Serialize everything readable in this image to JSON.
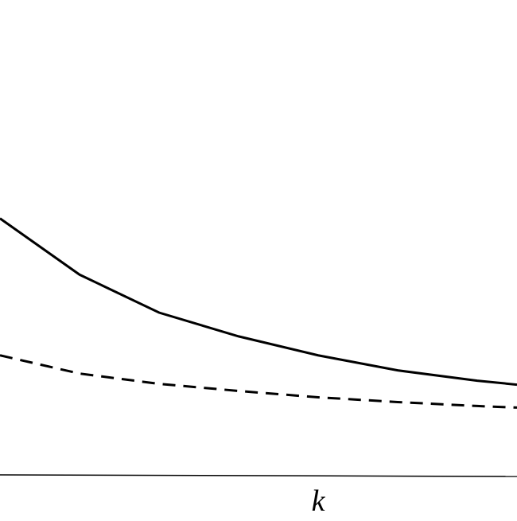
{
  "chart_data": {
    "type": "line",
    "x_label": "k",
    "x": [
      0,
      1,
      2,
      3,
      4,
      5,
      6,
      6.5
    ],
    "series": [
      {
        "color": "#000000",
        "linestyle": "solid",
        "values": [
          3.24,
          2.53,
          2.05,
          1.75,
          1.51,
          1.32,
          1.19,
          1.14
        ]
      },
      {
        "color": "#000000",
        "linestyle": "dashed",
        "values": [
          1.51,
          1.28,
          1.15,
          1.06,
          0.98,
          0.92,
          0.87,
          0.85
        ]
      }
    ],
    "xlim": [
      0,
      6.5
    ],
    "ylim": [
      0,
      6
    ]
  }
}
